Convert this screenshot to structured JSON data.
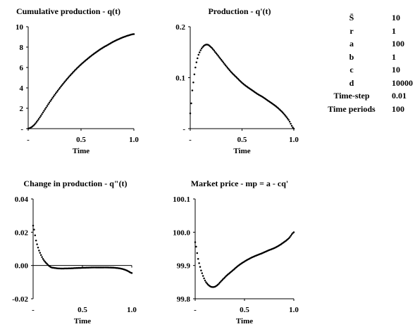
{
  "chart_data": [
    {
      "type": "scatter",
      "title": "Cumulative production - q(t)",
      "xlabel": "Time",
      "ylabel": "",
      "xlim": [
        0,
        1.0
      ],
      "ylim": [
        0,
        10
      ],
      "xticks": [
        "-",
        "0.5",
        "1.0"
      ],
      "yticks": [
        "-",
        "2",
        "4",
        "6",
        "8",
        "10"
      ],
      "baseline_y": 0,
      "marker": "dot",
      "points": [
        [
          0,
          0
        ],
        [
          0.05,
          0.3
        ],
        [
          0.1,
          0.95
        ],
        [
          0.15,
          1.75
        ],
        [
          0.2,
          2.55
        ],
        [
          0.25,
          3.3
        ],
        [
          0.3,
          4.0
        ],
        [
          0.35,
          4.65
        ],
        [
          0.4,
          5.25
        ],
        [
          0.45,
          5.8
        ],
        [
          0.5,
          6.3
        ],
        [
          0.55,
          6.75
        ],
        [
          0.6,
          7.17
        ],
        [
          0.65,
          7.55
        ],
        [
          0.7,
          7.9
        ],
        [
          0.75,
          8.2
        ],
        [
          0.8,
          8.5
        ],
        [
          0.85,
          8.75
        ],
        [
          0.9,
          8.97
        ],
        [
          0.95,
          9.15
        ],
        [
          1.0,
          9.28
        ]
      ]
    },
    {
      "type": "scatter",
      "title": "Production - q'(t)",
      "xlabel": "Time",
      "ylabel": "",
      "xlim": [
        0,
        1.0
      ],
      "ylim": [
        0,
        0.2
      ],
      "xticks": [
        "-",
        "0.5",
        "1.0"
      ],
      "yticks": [
        "-",
        "0.1",
        "0.2"
      ],
      "baseline_y": 0,
      "marker": "dot",
      "points": [
        [
          0,
          0.03
        ],
        [
          0.02,
          0.075
        ],
        [
          0.05,
          0.12
        ],
        [
          0.08,
          0.145
        ],
        [
          0.12,
          0.16
        ],
        [
          0.16,
          0.165
        ],
        [
          0.2,
          0.16
        ],
        [
          0.25,
          0.148
        ],
        [
          0.3,
          0.135
        ],
        [
          0.35,
          0.122
        ],
        [
          0.4,
          0.11
        ],
        [
          0.45,
          0.1
        ],
        [
          0.5,
          0.09
        ],
        [
          0.55,
          0.082
        ],
        [
          0.6,
          0.075
        ],
        [
          0.65,
          0.068
        ],
        [
          0.7,
          0.062
        ],
        [
          0.75,
          0.055
        ],
        [
          0.8,
          0.048
        ],
        [
          0.85,
          0.04
        ],
        [
          0.9,
          0.03
        ],
        [
          0.95,
          0.017
        ],
        [
          1.0,
          0.0
        ]
      ]
    },
    {
      "type": "scatter",
      "title": "Change in production - q\"(t)",
      "xlabel": "Time",
      "ylabel": "",
      "xlim": [
        0,
        1.0
      ],
      "ylim": [
        -0.02,
        0.04
      ],
      "xticks": [
        "-",
        "0.5",
        "1.0"
      ],
      "yticks": [
        "-0.02",
        "0.00",
        "0.02",
        "0.04"
      ],
      "baseline_y": 0,
      "marker": "dot",
      "points": [
        [
          0,
          0.024
        ],
        [
          0.03,
          0.015
        ],
        [
          0.06,
          0.009
        ],
        [
          0.1,
          0.004
        ],
        [
          0.14,
          0.001
        ],
        [
          0.18,
          -0.001
        ],
        [
          0.22,
          -0.0015
        ],
        [
          0.27,
          -0.0018
        ],
        [
          0.32,
          -0.0018
        ],
        [
          0.38,
          -0.0017
        ],
        [
          0.45,
          -0.0015
        ],
        [
          0.5,
          -0.0014
        ],
        [
          0.55,
          -0.0013
        ],
        [
          0.6,
          -0.0012
        ],
        [
          0.65,
          -0.0012
        ],
        [
          0.7,
          -0.0012
        ],
        [
          0.75,
          -0.0012
        ],
        [
          0.8,
          -0.0013
        ],
        [
          0.85,
          -0.0015
        ],
        [
          0.9,
          -0.002
        ],
        [
          0.95,
          -0.003
        ],
        [
          1.0,
          -0.0045
        ]
      ]
    },
    {
      "type": "scatter",
      "title": "Market price - mp = a - cq'",
      "xlabel": "Time",
      "ylabel": "",
      "xlim": [
        0,
        1.0
      ],
      "ylim": [
        99.8,
        100.1
      ],
      "xticks": [
        "-",
        "0.5",
        "1.0"
      ],
      "yticks": [
        "99.8",
        "99.9",
        "100.0",
        "100.1"
      ],
      "baseline_y": 99.8,
      "marker": "dot",
      "points": [
        [
          0,
          99.97
        ],
        [
          0.03,
          99.92
        ],
        [
          0.06,
          99.885
        ],
        [
          0.1,
          99.855
        ],
        [
          0.14,
          99.84
        ],
        [
          0.18,
          99.835
        ],
        [
          0.22,
          99.84
        ],
        [
          0.27,
          99.855
        ],
        [
          0.32,
          99.87
        ],
        [
          0.38,
          99.885
        ],
        [
          0.44,
          99.9
        ],
        [
          0.5,
          99.912
        ],
        [
          0.56,
          99.922
        ],
        [
          0.62,
          99.93
        ],
        [
          0.68,
          99.937
        ],
        [
          0.74,
          99.945
        ],
        [
          0.8,
          99.952
        ],
        [
          0.85,
          99.96
        ],
        [
          0.9,
          99.97
        ],
        [
          0.95,
          99.982
        ],
        [
          1.0,
          100.0
        ]
      ]
    }
  ],
  "parameters": [
    {
      "name": "S̄",
      "value": "10"
    },
    {
      "name": "r",
      "value": "1"
    },
    {
      "name": "a",
      "value": "100"
    },
    {
      "name": "b",
      "value": "1"
    },
    {
      "name": "c",
      "value": "10"
    },
    {
      "name": "d",
      "value": "10000"
    },
    {
      "name": "Time-step",
      "value": "0.01"
    },
    {
      "name": "Time periods",
      "value": "100"
    }
  ]
}
